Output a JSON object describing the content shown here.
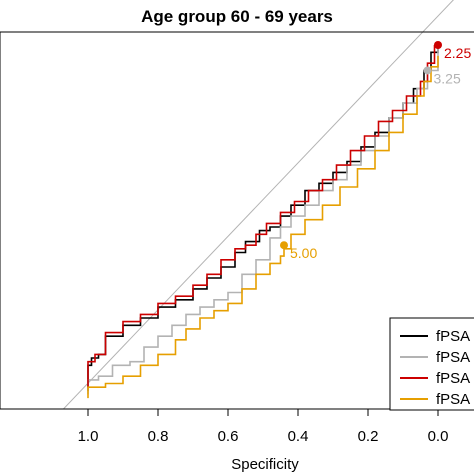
{
  "chart_data": {
    "type": "line",
    "title": "Age group 60 - 69 years",
    "xlabel": "Specificity",
    "ylabel": "",
    "x_reversed": true,
    "xlim": [
      1.05,
      -0.1
    ],
    "ylim": [
      0,
      1.05
    ],
    "xticks": [
      1.0,
      0.8,
      0.6,
      0.4,
      0.2,
      0.0
    ],
    "xtick_labels": [
      "1.0",
      "0.8",
      "0.6",
      "0.4",
      "0.2",
      "0.0"
    ],
    "grid": false,
    "legend_position": "bottom-right",
    "reference_line": {
      "from": [
        1.1,
        -0.03
      ],
      "to": [
        -0.05,
        1.13
      ],
      "color": "#b3b3b3"
    },
    "series": [
      {
        "name": "fPSA",
        "color": "#000000",
        "points": [
          [
            1.0,
            0.05
          ],
          [
            1.0,
            0.12
          ],
          [
            0.99,
            0.14
          ],
          [
            0.97,
            0.15
          ],
          [
            0.95,
            0.2
          ],
          [
            0.9,
            0.23
          ],
          [
            0.85,
            0.25
          ],
          [
            0.8,
            0.28
          ],
          [
            0.75,
            0.3
          ],
          [
            0.7,
            0.33
          ],
          [
            0.66,
            0.36
          ],
          [
            0.62,
            0.39
          ],
          [
            0.58,
            0.43
          ],
          [
            0.55,
            0.46
          ],
          [
            0.51,
            0.49
          ],
          [
            0.48,
            0.5
          ],
          [
            0.45,
            0.53
          ],
          [
            0.42,
            0.56
          ],
          [
            0.38,
            0.6
          ],
          [
            0.34,
            0.62
          ],
          [
            0.3,
            0.65
          ],
          [
            0.26,
            0.68
          ],
          [
            0.22,
            0.72
          ],
          [
            0.18,
            0.76
          ],
          [
            0.14,
            0.8
          ],
          [
            0.1,
            0.84
          ],
          [
            0.07,
            0.88
          ],
          [
            0.04,
            0.93
          ],
          [
            0.02,
            0.98
          ],
          [
            0.0,
            1.0
          ]
        ]
      },
      {
        "name": "fPSA",
        "color": "#b3b3b3",
        "points": [
          [
            1.0,
            0.04
          ],
          [
            1.0,
            0.08
          ],
          [
            0.97,
            0.09
          ],
          [
            0.93,
            0.12
          ],
          [
            0.88,
            0.13
          ],
          [
            0.84,
            0.17
          ],
          [
            0.8,
            0.2
          ],
          [
            0.76,
            0.23
          ],
          [
            0.72,
            0.26
          ],
          [
            0.68,
            0.28
          ],
          [
            0.64,
            0.3
          ],
          [
            0.6,
            0.32
          ],
          [
            0.56,
            0.37
          ],
          [
            0.52,
            0.41
          ],
          [
            0.48,
            0.47
          ],
          [
            0.45,
            0.5
          ],
          [
            0.42,
            0.53
          ],
          [
            0.38,
            0.56
          ],
          [
            0.34,
            0.6
          ],
          [
            0.3,
            0.63
          ],
          [
            0.26,
            0.67
          ],
          [
            0.22,
            0.71
          ],
          [
            0.18,
            0.75
          ],
          [
            0.14,
            0.8
          ],
          [
            0.1,
            0.84
          ],
          [
            0.06,
            0.88
          ],
          [
            0.03,
            0.93
          ],
          [
            0.0,
            1.0
          ]
        ]
      },
      {
        "name": "fPSA",
        "color": "#cc0000",
        "points": [
          [
            1.0,
            0.06
          ],
          [
            1.0,
            0.13
          ],
          [
            0.98,
            0.15
          ],
          [
            0.95,
            0.21
          ],
          [
            0.9,
            0.24
          ],
          [
            0.85,
            0.26
          ],
          [
            0.8,
            0.29
          ],
          [
            0.75,
            0.31
          ],
          [
            0.7,
            0.34
          ],
          [
            0.66,
            0.37
          ],
          [
            0.62,
            0.41
          ],
          [
            0.58,
            0.44
          ],
          [
            0.55,
            0.45
          ],
          [
            0.52,
            0.48
          ],
          [
            0.49,
            0.51
          ],
          [
            0.45,
            0.54
          ],
          [
            0.41,
            0.57
          ],
          [
            0.37,
            0.6
          ],
          [
            0.33,
            0.63
          ],
          [
            0.29,
            0.67
          ],
          [
            0.25,
            0.71
          ],
          [
            0.21,
            0.75
          ],
          [
            0.17,
            0.79
          ],
          [
            0.13,
            0.82
          ],
          [
            0.09,
            0.86
          ],
          [
            0.05,
            0.9
          ],
          [
            0.03,
            0.95
          ],
          [
            0.01,
            1.0
          ]
        ]
      },
      {
        "name": "fPSA",
        "color": "#e69f00",
        "points": [
          [
            1.0,
            0.03
          ],
          [
            1.0,
            0.06
          ],
          [
            0.95,
            0.07
          ],
          [
            0.9,
            0.09
          ],
          [
            0.85,
            0.12
          ],
          [
            0.8,
            0.15
          ],
          [
            0.75,
            0.19
          ],
          [
            0.72,
            0.22
          ],
          [
            0.68,
            0.25
          ],
          [
            0.64,
            0.27
          ],
          [
            0.6,
            0.29
          ],
          [
            0.56,
            0.33
          ],
          [
            0.52,
            0.37
          ],
          [
            0.48,
            0.4
          ],
          [
            0.45,
            0.42
          ],
          [
            0.44,
            0.44
          ],
          [
            0.42,
            0.48
          ],
          [
            0.38,
            0.52
          ],
          [
            0.33,
            0.56
          ],
          [
            0.28,
            0.61
          ],
          [
            0.23,
            0.66
          ],
          [
            0.18,
            0.71
          ],
          [
            0.14,
            0.76
          ],
          [
            0.1,
            0.81
          ],
          [
            0.06,
            0.86
          ],
          [
            0.04,
            0.9
          ],
          [
            0.02,
            0.94
          ],
          [
            0.0,
            0.97
          ]
        ]
      }
    ],
    "annotations": [
      {
        "label": "5.00",
        "x": 0.44,
        "y": 0.45,
        "color": "#e69f00"
      },
      {
        "label": "2.25",
        "x": 0.0,
        "y": 1.0,
        "color": "#cc0000"
      },
      {
        "label": "3.25",
        "x": 0.03,
        "y": 0.93,
        "color": "#b3b3b3"
      }
    ],
    "legend_entries": [
      {
        "label": "fPSA",
        "color": "#000000"
      },
      {
        "label": "fPSA",
        "color": "#b3b3b3"
      },
      {
        "label": "fPSA",
        "color": "#cc0000"
      },
      {
        "label": "fPSA",
        "color": "#e69f00"
      }
    ]
  }
}
